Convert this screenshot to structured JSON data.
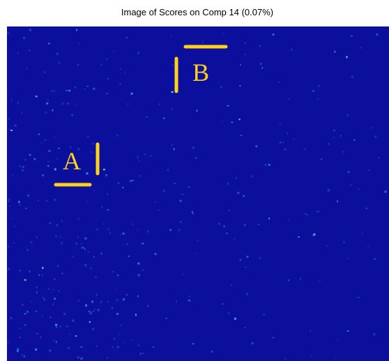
{
  "title": "Image of Scores on Comp 14 (0.07%)",
  "annotations": [
    {
      "label": "A"
    },
    {
      "label": "B"
    }
  ]
}
